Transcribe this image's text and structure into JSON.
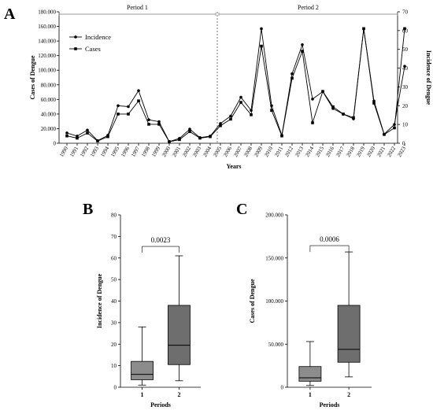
{
  "panels": {
    "a": "A",
    "b": "B",
    "c": "C"
  },
  "chart_data": [
    {
      "type": "line",
      "xlabel": "Years",
      "ylabel": "Cases of Dengue",
      "y2label": "Incidence of Dengue",
      "ylim": [
        0,
        180000
      ],
      "y2lim": [
        0,
        70
      ],
      "yticks": [
        "0",
        "20.000",
        "40.000",
        "60.000",
        "80.000",
        "100.000",
        "120.000",
        "140.000",
        "160.000",
        "180.000"
      ],
      "y2ticks": [
        "0",
        "10",
        "20",
        "30",
        "40",
        "50",
        "60",
        "70"
      ],
      "periods": [
        {
          "label": "Period 1",
          "start": "1990",
          "end": "2005"
        },
        {
          "label": "Period 2",
          "start": "2005",
          "end": "2023"
        }
      ],
      "categories": [
        "1990",
        "1991",
        "1992",
        "1993",
        "1994",
        "1995",
        "1996",
        "1997",
        "1998",
        "1999",
        "2000",
        "2001",
        "2002",
        "2003",
        "2004",
        "2005",
        "2006",
        "2007",
        "2008",
        "2009",
        "2010",
        "2011",
        "2012",
        "2013",
        "2014",
        "2015",
        "2016",
        "2017",
        "2018",
        "2019",
        "2020",
        "2021",
        "2022",
        "2023"
      ],
      "series": [
        {
          "name": "Incidence",
          "axis": "right",
          "marker": "circle",
          "values": [
            5.5,
            3.8,
            7.0,
            1.4,
            4.2,
            20.0,
            19.5,
            28.0,
            12.5,
            11.5,
            0.9,
            2.6,
            7.5,
            3.0,
            3.8,
            10.5,
            14.5,
            24.5,
            17.5,
            61.0,
            20.0,
            4.2,
            37.0,
            52.5,
            23.5,
            27.5,
            18.5,
            15.5,
            13.0,
            61.0,
            22.5,
            4.8,
            10.0,
            41.0
          ]
        },
        {
          "name": "Cases",
          "axis": "left",
          "marker": "square",
          "values": [
            10000,
            7000,
            14000,
            3000,
            9000,
            40000,
            40000,
            58000,
            26000,
            26000,
            2000,
            5000,
            16000,
            7000,
            9000,
            24000,
            33000,
            56000,
            39000,
            133000,
            45000,
            10000,
            89000,
            126000,
            28000,
            71000,
            50000,
            40000,
            35000,
            157000,
            55000,
            12000,
            21000,
            157000
          ]
        }
      ]
    },
    {
      "type": "box",
      "ylabel": "Incidence of Dengue",
      "xlabel": "Periods",
      "ylim": [
        0,
        80
      ],
      "yticks": [
        "0",
        "10",
        "20",
        "30",
        "40",
        "50",
        "60",
        "70",
        "80"
      ],
      "categories": [
        "1",
        "2"
      ],
      "pvalue": "0.0023",
      "boxes": [
        {
          "min": 1.0,
          "q1": 3.5,
          "median": 6.0,
          "q3": 12.0,
          "max": 28.0
        },
        {
          "min": 3.0,
          "q1": 10.5,
          "median": 19.5,
          "q3": 38.0,
          "max": 61.0
        }
      ]
    },
    {
      "type": "box",
      "ylabel": "Cases of Dengue",
      "xlabel": "Periods",
      "ylim": [
        0,
        200000
      ],
      "yticks": [
        "0",
        "50.000",
        "100.000",
        "150.000",
        "200.000"
      ],
      "categories": [
        "1",
        "2"
      ],
      "pvalue": "0.0006",
      "boxes": [
        {
          "min": 2000,
          "q1": 7000,
          "median": 11000,
          "q3": 24000,
          "max": 53000
        },
        {
          "min": 12000,
          "q1": 29000,
          "median": 44000,
          "q3": 95000,
          "max": 157000
        }
      ]
    }
  ],
  "colors": {
    "line": "#000000",
    "box1": "#8c8c8c",
    "box2": "#6e6e6e",
    "divider": "#555555"
  }
}
